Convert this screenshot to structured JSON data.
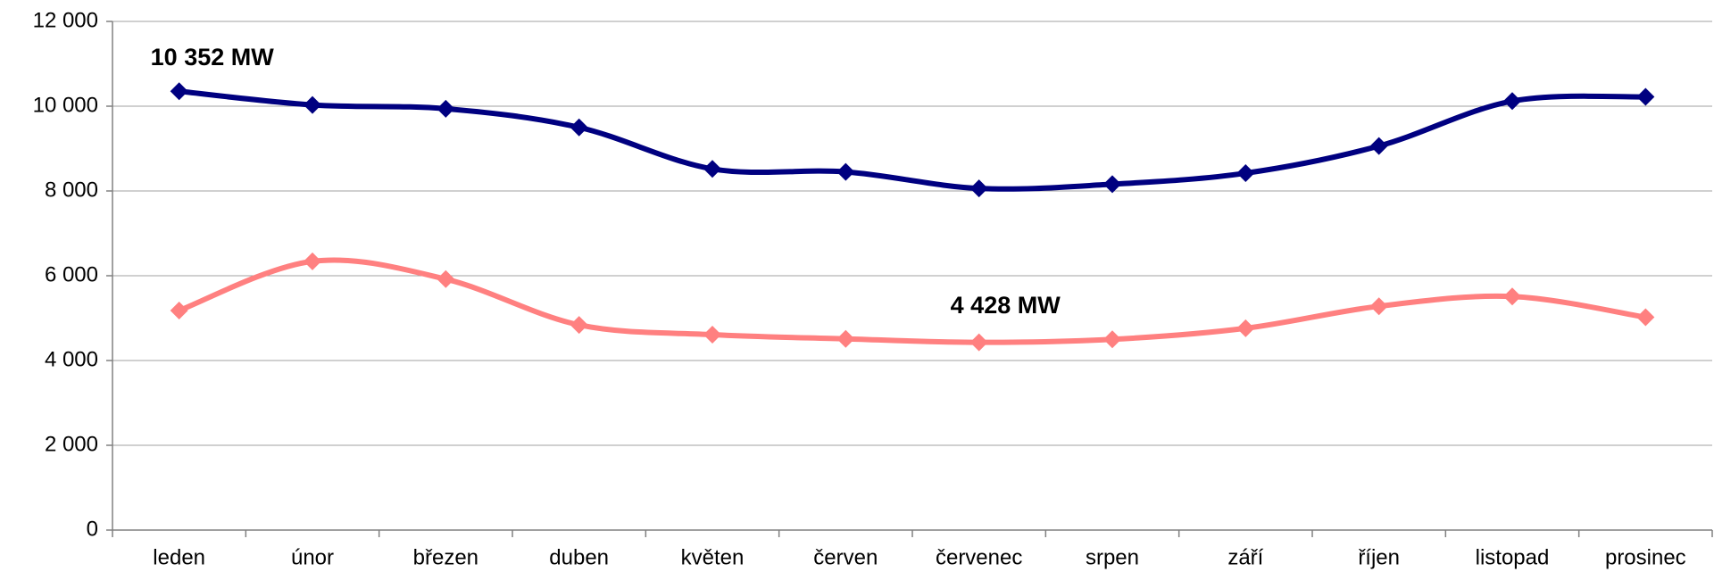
{
  "chart_data": {
    "type": "line",
    "categories": [
      "leden",
      "únor",
      "březen",
      "duben",
      "květen",
      "červen",
      "červenec",
      "srpen",
      "září",
      "říjen",
      "listopad",
      "prosinec"
    ],
    "series": [
      {
        "color": "#000080",
        "values": [
          10352,
          10030,
          9940,
          9500,
          8520,
          8450,
          8060,
          8160,
          8420,
          9060,
          10120,
          10220
        ]
      },
      {
        "color": "#ff8080",
        "values": [
          5180,
          6340,
          5920,
          4840,
          4610,
          4510,
          4428,
          4500,
          4760,
          5280,
          5510,
          5020
        ]
      }
    ],
    "annotations": [
      "10 352 MW",
      "4 428 MW"
    ],
    "ylim": [
      0,
      12000
    ],
    "yticks": [
      0,
      {
        "value": 2000,
        "label": "2 000"
      },
      {
        "value": 4000,
        "label": "4 000"
      },
      {
        "value": 6000,
        "label": "6 000"
      },
      {
        "value": 8000,
        "label": "8 000"
      },
      {
        "value": 10000,
        "label": "10 000"
      },
      {
        "value": 12000,
        "label": "12 000"
      }
    ],
    "grid": true
  }
}
